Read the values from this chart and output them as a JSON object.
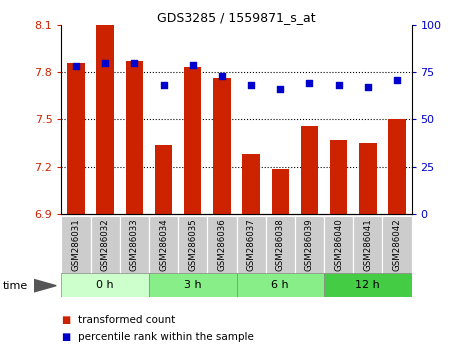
{
  "title": "GDS3285 / 1559871_s_at",
  "samples": [
    "GSM286031",
    "GSM286032",
    "GSM286033",
    "GSM286034",
    "GSM286035",
    "GSM286036",
    "GSM286037",
    "GSM286038",
    "GSM286039",
    "GSM286040",
    "GSM286041",
    "GSM286042"
  ],
  "bar_values": [
    7.855,
    8.1,
    7.87,
    7.34,
    7.835,
    7.76,
    7.28,
    7.185,
    7.46,
    7.37,
    7.35,
    7.5
  ],
  "percentile_values": [
    78,
    80,
    80,
    68,
    79,
    73,
    68,
    66,
    69,
    68,
    67,
    71
  ],
  "ylim_left": [
    6.9,
    8.1
  ],
  "ylim_right": [
    0,
    100
  ],
  "yticks_left": [
    6.9,
    7.2,
    7.5,
    7.8,
    8.1
  ],
  "yticks_right": [
    0,
    25,
    50,
    75,
    100
  ],
  "bar_color": "#cc2200",
  "dot_color": "#0000cc",
  "hlines": [
    7.2,
    7.5,
    7.8
  ],
  "groups": [
    {
      "label": "0 h",
      "start": 0,
      "end": 3,
      "color": "#ccffcc"
    },
    {
      "label": "3 h",
      "start": 3,
      "end": 6,
      "color": "#88ee88"
    },
    {
      "label": "6 h",
      "start": 6,
      "end": 9,
      "color": "#88ee88"
    },
    {
      "label": "12 h",
      "start": 9,
      "end": 12,
      "color": "#44cc44"
    }
  ],
  "time_label": "time",
  "legend_bar_label": "transformed count",
  "legend_dot_label": "percentile rank within the sample",
  "left_tick_color": "#cc2200",
  "right_tick_color": "#0000cc",
  "sample_box_color": "#cccccc",
  "figsize": [
    4.73,
    3.54
  ],
  "dpi": 100
}
